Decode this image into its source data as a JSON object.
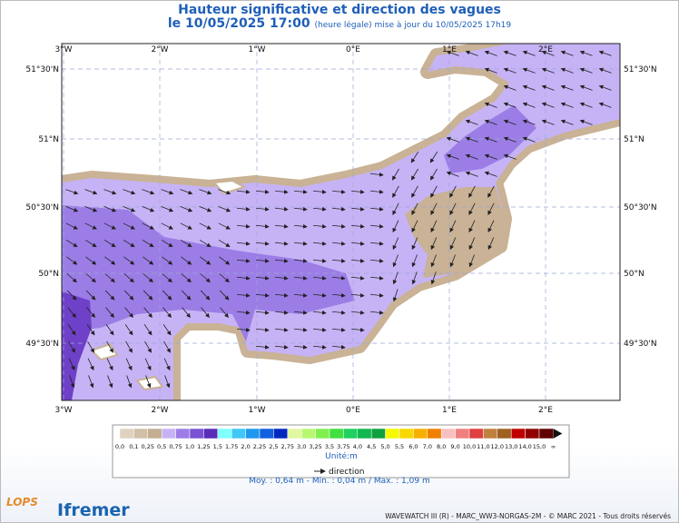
{
  "header": {
    "title": "Hauteur significative et direction des vagues",
    "date": "le 10/05/2025 17:00",
    "update": "(heure légale) mise à jour du 10/05/2025 17h19"
  },
  "map": {
    "lon_labels": [
      "3°W",
      "2°W",
      "1°W",
      "0°E",
      "1°E",
      "2°E"
    ],
    "lat_labels": [
      "51°30'N",
      "51°N",
      "50°30'N",
      "50°N",
      "49°30'N"
    ]
  },
  "colorbar": {
    "colors": [
      "#e0d2c0",
      "#d2bfa8",
      "#c4ae92",
      "#c6b3f6",
      "#9c7de6",
      "#7a52d4",
      "#5a2cb8",
      "#80ffff",
      "#40c8f8",
      "#2098f0",
      "#1060e0",
      "#0028c0",
      "#e0f8a0",
      "#b8f870",
      "#80f050",
      "#40e040",
      "#20d060",
      "#10b850",
      "#10a040",
      "#f8f800",
      "#f8d800",
      "#f8b000",
      "#f08000",
      "#f8c0c0",
      "#f08080",
      "#e04040",
      "#c08040",
      "#a06020",
      "#c00000",
      "#900000",
      "#600000",
      "#f000f0",
      "#a00080"
    ],
    "labels": [
      "0,0",
      "0,1",
      "0,25",
      "0,5",
      "0,75",
      "1,0",
      "1,25",
      "1,5",
      "1,75",
      "2,0",
      "2,25",
      "2,5",
      "2,75",
      "3,0",
      "3,25",
      "3,5",
      "3,75",
      "4,0",
      "4,5",
      "5,0",
      "5,5",
      "6,0",
      "7,0",
      "8,0",
      "9,0",
      "10,0",
      "11,0",
      "12,0",
      "13,0",
      "14,0",
      "15,0",
      "∞"
    ],
    "unit": "Unité:m",
    "direction": "direction"
  },
  "stats": "Moy. : 0,64 m   -   Min. : 0,04 m / Max. : 1,09 m",
  "footer": {
    "credit": "WAVEWATCH III (R) - MARC_WW3-NORGAS-2M - © MARC 2021 - Tous droits réservés",
    "logos": [
      "LOPS",
      "Ifremer"
    ]
  }
}
